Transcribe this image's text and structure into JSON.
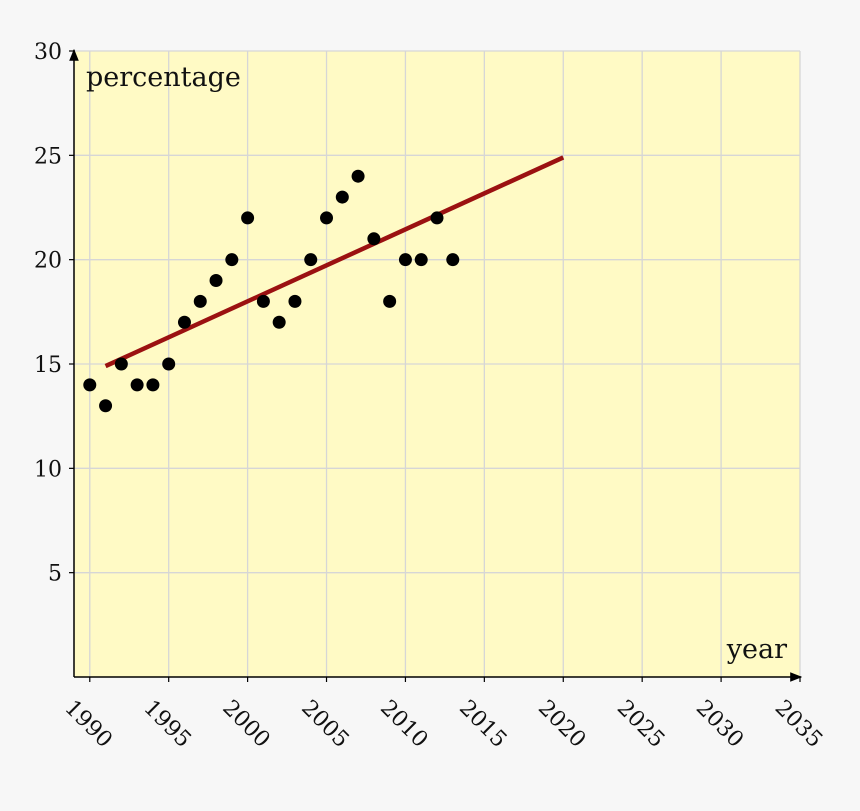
{
  "chart_data": {
    "type": "scatter",
    "xlabel": "year",
    "ylabel": "percentage",
    "xlim": [
      1989,
      2035
    ],
    "ylim": [
      0,
      30
    ],
    "x_ticks": [
      1990,
      1995,
      2000,
      2005,
      2010,
      2015,
      2020,
      2025,
      2030,
      2035
    ],
    "y_ticks": [
      5,
      10,
      15,
      20,
      25,
      30
    ],
    "x_tick_labels": [
      "1990",
      "1995",
      "2000",
      "2005",
      "2010",
      "2015",
      "2020",
      "2025",
      "2030",
      "2035"
    ],
    "y_tick_labels": [
      "5",
      "10",
      "15",
      "20",
      "25",
      "30"
    ],
    "grid": true,
    "series": [
      {
        "type": "scatter",
        "x": [
          1990,
          1991,
          1992,
          1993,
          1994,
          1995,
          1996,
          1997,
          1998,
          1999,
          2000,
          2001,
          2002,
          2003,
          2004,
          2005,
          2006,
          2007,
          2008,
          2009,
          2010,
          2011,
          2012,
          2013
        ],
        "y": [
          14,
          13,
          15,
          14,
          14,
          15,
          17,
          18,
          19,
          20,
          22,
          18,
          17,
          18,
          20,
          22,
          23,
          24,
          21,
          18,
          20,
          20,
          22,
          20
        ]
      },
      {
        "type": "line",
        "x": [
          1991,
          2020
        ],
        "y": [
          14.9,
          24.9
        ]
      }
    ],
    "colors": {
      "plot_background": "#fffac5",
      "points": "#000000",
      "trend_line": "#9b1111",
      "grid": "#d6d6d6"
    }
  }
}
